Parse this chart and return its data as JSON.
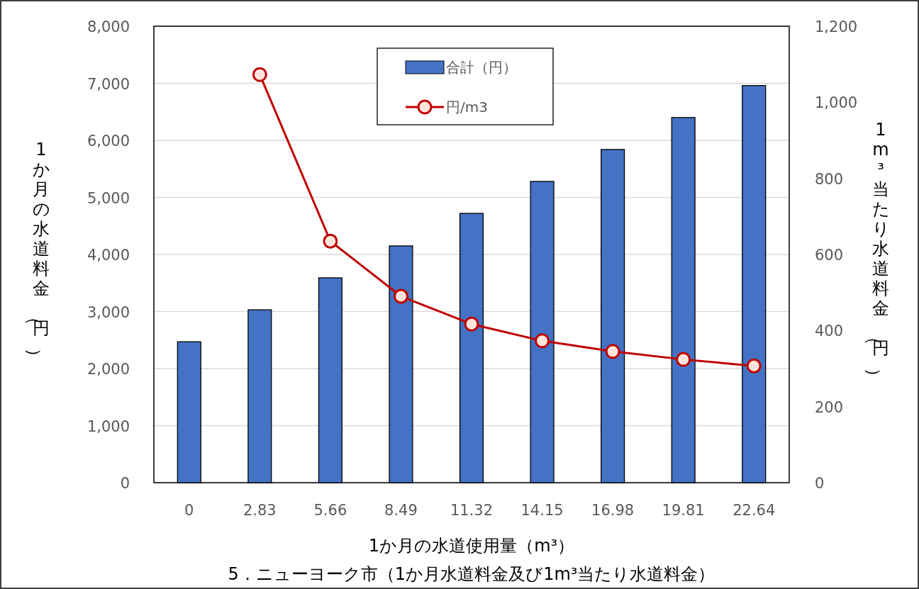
{
  "chart_data": {
    "type": "bar",
    "title": "5．ニューヨーク市（1か月水道料金及び1m³当たり水道料金）",
    "xlabel": "1か月の水道使用量（m³）",
    "ylabel": "1か月の水道料金（円）",
    "y2label": "1m³当たり水道料金（円）",
    "categories": [
      "0",
      "2.83",
      "5.66",
      "8.49",
      "11.32",
      "14.15",
      "16.98",
      "19.81",
      "22.64"
    ],
    "series": [
      {
        "name": "合計（円）",
        "color": "#4472c4",
        "values": [
          2470,
          3030,
          3590,
          4150,
          4720,
          5280,
          5840,
          6400,
          6960
        ]
      },
      {
        "name": "円/m3",
        "type": "line",
        "axis": "y2",
        "color": "#c00000",
        "marker": "circle",
        "values": [
          null,
          1073,
          635,
          490,
          417,
          373,
          345,
          324,
          307
        ]
      }
    ],
    "ylim": [
      0,
      8000
    ],
    "yticks": [
      0,
      {
        "value": 1000,
        "label": "1,000"
      },
      {
        "value": 2000,
        "label": "2,000"
      },
      {
        "value": 3000,
        "label": "3,000"
      },
      {
        "value": 4000,
        "label": "4,000"
      },
      {
        "value": 5000,
        "label": "5,000"
      },
      {
        "value": 6000,
        "label": "6,000"
      },
      {
        "value": 7000,
        "label": "7,000"
      },
      {
        "value": 8000,
        "label": "8,000"
      }
    ],
    "y2lim": [
      0,
      1200
    ],
    "y2ticks": [
      0,
      200,
      400,
      600,
      800,
      {
        "value": 1000,
        "label": "1,000"
      },
      {
        "value": 1200,
        "label": "1,200"
      }
    ],
    "grid": "y",
    "legend": "top"
  }
}
